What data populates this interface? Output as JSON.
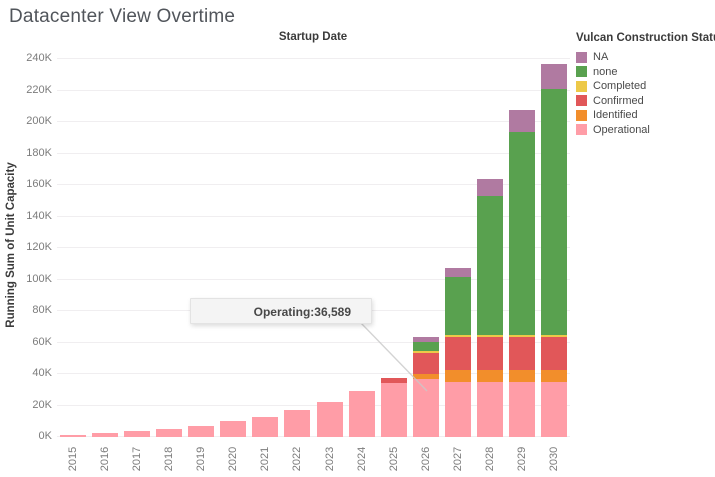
{
  "title": "Datacenter View Overtime",
  "tooltip": {
    "text": "Operating:36,589"
  },
  "legend": {
    "title": "Vulcan Construction Status",
    "items": [
      {
        "label": "NA",
        "color": "#b07aa1"
      },
      {
        "label": "none",
        "color": "#59a14f"
      },
      {
        "label": "Completed",
        "color": "#edc948"
      },
      {
        "label": "Confirmed",
        "color": "#e15759"
      },
      {
        "label": "Identified",
        "color": "#f28e2b"
      },
      {
        "label": "Operational",
        "color": "#ff9da7"
      }
    ]
  },
  "chart_data": {
    "type": "bar",
    "subtype": "stacked",
    "title": "Startup Date",
    "xlabel": "Startup Date",
    "ylabel": "Running Sum of Unit Capacity",
    "categories": [
      "2015",
      "2016",
      "2017",
      "2018",
      "2019",
      "2020",
      "2021",
      "2022",
      "2023",
      "2024",
      "2025",
      "2026",
      "2027",
      "2028",
      "2029",
      "2030"
    ],
    "series": [
      {
        "name": "Operational",
        "color": "#ff9da7",
        "values": [
          1500,
          2800,
          3800,
          5000,
          7000,
          10000,
          12800,
          17000,
          22400,
          29000,
          34500,
          36589,
          35000,
          35000,
          35000,
          35000
        ]
      },
      {
        "name": "Identified",
        "color": "#f28e2b",
        "values": [
          0,
          0,
          0,
          0,
          0,
          0,
          0,
          0,
          0,
          0,
          0,
          3200,
          7400,
          7400,
          7400,
          7400
        ]
      },
      {
        "name": "Confirmed",
        "color": "#e15759",
        "values": [
          0,
          0,
          0,
          0,
          0,
          0,
          0,
          0,
          0,
          0,
          2800,
          13400,
          21000,
          21000,
          21000,
          21000
        ]
      },
      {
        "name": "Completed",
        "color": "#edc948",
        "values": [
          0,
          0,
          0,
          0,
          0,
          0,
          0,
          0,
          0,
          0,
          0,
          1500,
          1500,
          1500,
          1500,
          1500
        ]
      },
      {
        "name": "none",
        "color": "#59a14f",
        "values": [
          0,
          0,
          0,
          0,
          0,
          0,
          0,
          0,
          0,
          0,
          0,
          5400,
          36500,
          88000,
          128500,
          156000
        ]
      },
      {
        "name": "NA",
        "color": "#b07aa1",
        "values": [
          0,
          0,
          0,
          0,
          0,
          0,
          0,
          0,
          0,
          0,
          0,
          3200,
          6000,
          11000,
          14000,
          16000
        ]
      }
    ],
    "ylim": [
      0,
      240000
    ],
    "ytick_step": 20000,
    "ytick_labels": [
      "0K",
      "20K",
      "40K",
      "60K",
      "80K",
      "100K",
      "120K",
      "140K",
      "160K",
      "180K",
      "200K",
      "220K",
      "240K"
    ],
    "grid": true,
    "legend_position": "top-right",
    "annotation": "Operating:36,589"
  }
}
